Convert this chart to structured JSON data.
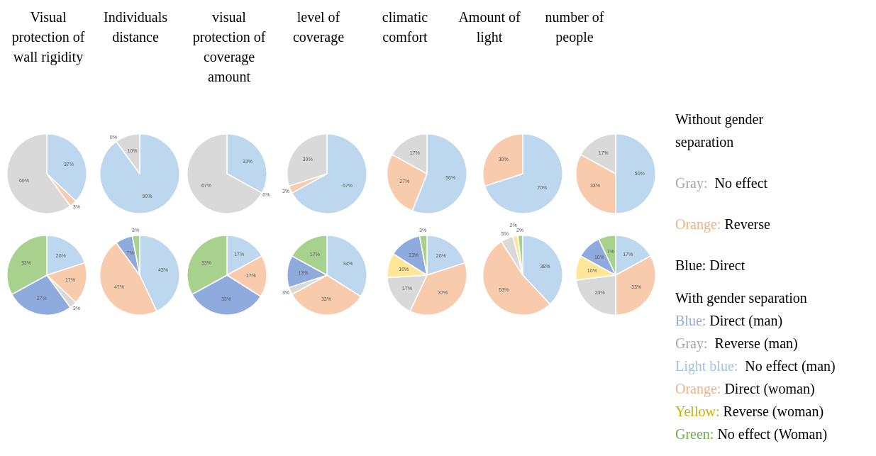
{
  "chart_data": [
    {
      "type": "pie",
      "title": "Visual protection of wall rigidity",
      "categories": [
        null,
        null,
        null
      ],
      "values": [
        37,
        3,
        60
      ],
      "value_labels": [
        "37%",
        "3%",
        "60%"
      ],
      "colors": [
        "#bdd7ee",
        "#f8cbad",
        "#d9d9d9"
      ]
    },
    {
      "type": "pie",
      "title": "Individuals distance",
      "categories": [
        null,
        null,
        null
      ],
      "values": [
        90,
        0,
        10
      ],
      "value_labels": [
        "90%",
        "0%",
        "10%"
      ],
      "colors": [
        "#bdd7ee",
        "#f8cbad",
        "#d9d9d9"
      ]
    },
    {
      "type": "pie",
      "title": "visual protection of coverage amount",
      "categories": [
        null,
        null,
        null
      ],
      "values": [
        33,
        0,
        67
      ],
      "value_labels": [
        "33%",
        "0%",
        "67%"
      ],
      "colors": [
        "#bdd7ee",
        "#f8cbad",
        "#d9d9d9"
      ]
    },
    {
      "type": "pie",
      "title": "level of coverage",
      "categories": [
        null,
        null,
        null
      ],
      "values": [
        67,
        3,
        30
      ],
      "value_labels": [
        "67%",
        "3%",
        "30%"
      ],
      "colors": [
        "#bdd7ee",
        "#f8cbad",
        "#d9d9d9"
      ]
    },
    {
      "type": "pie",
      "title": "climatic comfort",
      "categories": [
        null,
        null,
        null
      ],
      "values": [
        56,
        27,
        17
      ],
      "value_labels": [
        "56%",
        "27%",
        "17%"
      ],
      "colors": [
        "#bdd7ee",
        "#f8cbad",
        "#d9d9d9"
      ]
    },
    {
      "type": "pie",
      "title": "Amount of light",
      "categories": [
        null,
        null
      ],
      "values": [
        70,
        30
      ],
      "value_labels": [
        "70%",
        "30%"
      ],
      "colors": [
        "#bdd7ee",
        "#f8cbad"
      ]
    },
    {
      "type": "pie",
      "title": "number of people",
      "categories": [
        null,
        null,
        null
      ],
      "values": [
        50,
        33,
        17
      ],
      "value_labels": [
        "50%",
        "33%",
        "17%"
      ],
      "colors": [
        "#bdd7ee",
        "#f8cbad",
        "#d9d9d9"
      ]
    },
    {
      "type": "pie",
      "categories": [
        null,
        null,
        null,
        null,
        null
      ],
      "values": [
        20,
        17,
        3,
        27,
        33
      ],
      "value_labels": [
        "20%",
        "17%",
        "3%",
        "27%",
        "33%"
      ],
      "colors": [
        "#bdd7ee",
        "#f8cbad",
        "#d9d9d9",
        "#8faadc",
        "#a9d18e"
      ]
    },
    {
      "type": "pie",
      "categories": [
        null,
        null,
        null,
        null
      ],
      "values": [
        43,
        47,
        7,
        3
      ],
      "value_labels": [
        "43%",
        "47%",
        "7%",
        "3%"
      ],
      "colors": [
        "#bdd7ee",
        "#f8cbad",
        "#8faadc",
        "#a9d18e"
      ]
    },
    {
      "type": "pie",
      "categories": [
        null,
        null,
        null,
        null
      ],
      "values": [
        17,
        17,
        33,
        33
      ],
      "value_labels": [
        "17%",
        "17%",
        "33%",
        "33%"
      ],
      "colors": [
        "#bdd7ee",
        "#f8cbad",
        "#8faadc",
        "#a9d18e"
      ]
    },
    {
      "type": "pie",
      "categories": [
        null,
        null,
        null,
        null,
        null
      ],
      "values": [
        34,
        33,
        3,
        13,
        17
      ],
      "value_labels": [
        "34%",
        "33%",
        "3%",
        "13%",
        "17%"
      ],
      "colors": [
        "#bdd7ee",
        "#f8cbad",
        "#d9d9d9",
        "#8faadc",
        "#a9d18e"
      ]
    },
    {
      "type": "pie",
      "categories": [
        null,
        null,
        null,
        null,
        null,
        null
      ],
      "values": [
        20,
        37,
        17,
        10,
        13,
        3
      ],
      "value_labels": [
        "20%",
        "37%",
        "17%",
        "10%",
        "13%",
        "3%"
      ],
      "colors": [
        "#bdd7ee",
        "#f8cbad",
        "#d9d9d9",
        "#ffe699",
        "#8faadc",
        "#a9d18e"
      ]
    },
    {
      "type": "pie",
      "categories": [
        null,
        null,
        null,
        null,
        null
      ],
      "values": [
        38,
        53,
        5,
        2,
        2
      ],
      "value_labels": [
        "38%",
        "53%",
        "5%",
        "2%",
        "2%"
      ],
      "colors": [
        "#bdd7ee",
        "#f8cbad",
        "#d9d9d9",
        "#ffe699",
        "#a9d18e"
      ]
    },
    {
      "type": "pie",
      "categories": [
        null,
        null,
        null,
        null,
        null,
        null
      ],
      "values": [
        17,
        33,
        23,
        10,
        10,
        7
      ],
      "value_labels": [
        "17%",
        "33%",
        "23%",
        "10%",
        "10%",
        "7%"
      ],
      "colors": [
        "#bdd7ee",
        "#f8cbad",
        "#d9d9d9",
        "#ffe699",
        "#8faadc",
        "#a9d18e"
      ]
    },
    {
      "type": "other",
      "annotations": [
        "Without gender separation",
        "Gray:  No effect",
        "Orange: Reverse",
        "Blue: Direct",
        "With gender separation",
        "Blue: Direct (man)",
        "Gray:  Reverse (man)",
        "Light blue:  No effect (man)",
        "Orange: Direct (woman)",
        "Yellow: Reverse (woman)",
        "Green: No effect (Woman)"
      ],
      "colors": [
        null,
        "#a6a6a6",
        "#f4b183",
        null,
        null,
        "#8faadc",
        "#a6a6a6",
        "#9dc3e6",
        "#f4b183",
        "#c9b000",
        "#70ad47"
      ]
    }
  ]
}
